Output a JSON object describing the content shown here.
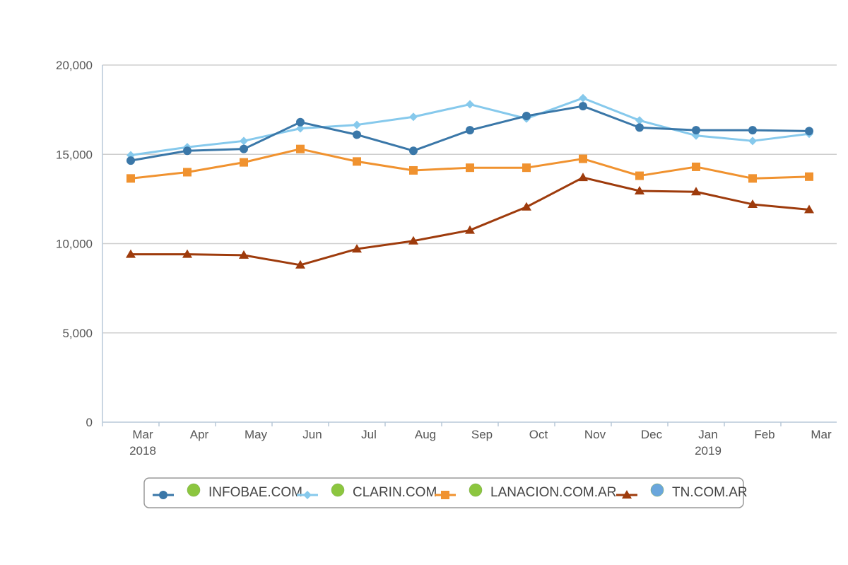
{
  "chart_data": {
    "type": "line",
    "title": "",
    "xlabel": "",
    "ylabel": "",
    "categories": [
      "Mar",
      "Apr",
      "May",
      "Jun",
      "Jul",
      "Aug",
      "Sep",
      "Oct",
      "Nov",
      "Dec",
      "Jan",
      "Feb",
      "Mar"
    ],
    "year_labels": [
      "2018",
      "",
      "",
      "",
      "",
      "",
      "",
      "",
      "",
      "",
      "2019",
      "",
      ""
    ],
    "ylim": [
      0,
      20000
    ],
    "y_ticks": [
      0,
      5000,
      10000,
      15000,
      20000
    ],
    "y_tick_labels": [
      "0",
      "5,000",
      "10,000",
      "15,000",
      "20,000"
    ],
    "grid": true,
    "legend_position": "bottom",
    "series": [
      {
        "name": "INFOBAE.COM",
        "color": "#3a77a8",
        "marker": "circle",
        "values": [
          14650,
          15200,
          15300,
          16800,
          16100,
          15200,
          16350,
          17150,
          17700,
          16500,
          16350,
          16350,
          16300
        ]
      },
      {
        "name": "CLARIN.COM",
        "color": "#86c9ec",
        "marker": "diamond",
        "values": [
          14950,
          15400,
          15750,
          16450,
          16650,
          17100,
          17800,
          17000,
          18150,
          16900,
          16050,
          15750,
          16150
        ]
      },
      {
        "name": "LANACION.COM.AR",
        "color": "#f0922f",
        "marker": "square",
        "values": [
          13650,
          14000,
          14550,
          15300,
          14600,
          14100,
          14250,
          14250,
          14750,
          13800,
          14300,
          13650,
          13750
        ]
      },
      {
        "name": "TN.COM.AR",
        "color": "#9e3b0c",
        "marker": "triangle",
        "values": [
          9400,
          9400,
          9350,
          8800,
          9700,
          10150,
          10750,
          12050,
          13700,
          12950,
          12900,
          12200,
          11900
        ]
      }
    ],
    "legend_dot_colors": [
      "#8cc63f",
      "#8cc63f",
      "#8cc63f",
      "#6aa6dc"
    ]
  }
}
